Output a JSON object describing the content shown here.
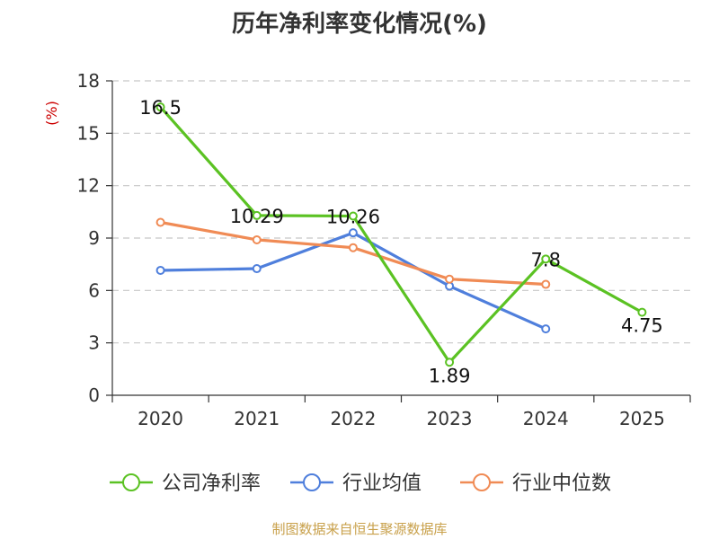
{
  "chart_data": {
    "type": "line",
    "title": "历年净利率变化情况(%)",
    "ylabel": "(%)",
    "xlabel": "",
    "categories": [
      "2020",
      "2021",
      "2022",
      "2023",
      "2024",
      "2025"
    ],
    "ylim": [
      0,
      18
    ],
    "yticks": [
      0,
      3,
      6,
      9,
      12,
      15,
      18
    ],
    "grid": true,
    "legend_position": "bottom",
    "series": [
      {
        "name": "公司净利率",
        "color": "#5bc223",
        "values": [
          16.5,
          10.29,
          10.26,
          1.89,
          7.8,
          4.75
        ],
        "labels": [
          "16.5",
          "10.29",
          "10.26",
          "1.89",
          "7.8",
          "4.75"
        ]
      },
      {
        "name": "行业均值",
        "color": "#4f7fdc",
        "values": [
          7.15,
          7.25,
          9.3,
          6.25,
          3.8,
          null
        ]
      },
      {
        "name": "行业中位数",
        "color": "#f08b55",
        "values": [
          9.9,
          8.9,
          8.45,
          6.65,
          6.35,
          null
        ]
      }
    ]
  },
  "footer": {
    "source": "制图数据来自恒生聚源数据库"
  }
}
